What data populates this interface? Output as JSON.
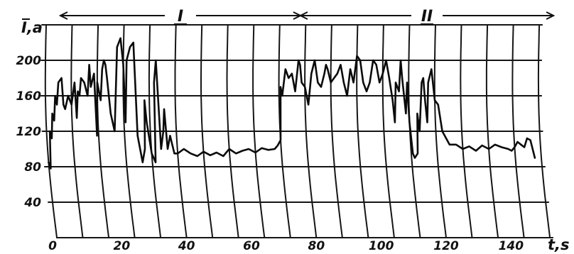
{
  "chart_data": {
    "type": "line",
    "xlabel": "t,s",
    "ylabel": "I,a",
    "xlim": [
      0,
      150
    ],
    "ylim": [
      0,
      240
    ],
    "x_ticks": [
      {
        "value": 0,
        "label": "0"
      },
      {
        "value": 20,
        "label": "20"
      },
      {
        "value": 40,
        "label": "40"
      },
      {
        "value": 60,
        "label": "60"
      },
      {
        "value": 80,
        "label": "80"
      },
      {
        "value": 100,
        "label": "100"
      },
      {
        "value": 120,
        "label": "120"
      },
      {
        "value": 140,
        "label": "140"
      }
    ],
    "y_ticks": [
      {
        "value": 40,
        "label": "40"
      },
      {
        "value": 80,
        "label": "80"
      },
      {
        "value": 120,
        "label": "120"
      },
      {
        "value": 160,
        "label": "160"
      },
      {
        "value": 200,
        "label": "200"
      }
    ],
    "grid": true,
    "phases": [
      {
        "label": "I",
        "x_start": 0,
        "x_end": 74
      },
      {
        "label": "II",
        "x_start": 74,
        "x_end": 152
      }
    ],
    "series": [
      {
        "x": [
          0,
          0.5,
          1,
          1.5,
          2,
          2.5,
          3,
          3.5,
          4,
          5,
          5.5,
          6,
          7,
          8,
          9,
          9.5,
          10,
          10.5,
          11,
          12,
          13,
          13.5,
          14,
          15,
          15.5,
          16,
          17,
          17.5,
          18,
          18.5,
          19,
          20,
          21,
          22,
          23,
          24,
          24.5,
          25,
          26,
          27,
          28,
          29,
          30,
          30.5,
          31,
          32,
          33,
          33.5,
          34,
          35,
          36,
          36.5,
          37,
          38,
          39,
          40,
          42,
          44,
          46,
          48,
          50,
          52,
          54,
          56,
          58,
          60,
          62,
          64,
          66,
          68,
          70,
          71,
          72,
          72.5,
          73,
          74,
          75,
          76,
          77,
          78,
          78.5,
          79,
          80,
          81,
          82,
          83,
          84,
          85,
          86,
          86.5,
          87,
          88,
          89,
          90,
          91,
          92,
          93,
          94,
          95,
          96,
          97,
          98,
          99,
          100,
          101,
          102,
          103,
          104,
          105,
          106,
          107,
          107.5,
          108,
          109,
          109.5,
          110,
          111,
          111.5,
          112,
          112.5,
          113,
          114,
          114.5,
          115,
          116,
          116.5,
          117,
          117.5,
          118,
          119,
          120,
          121,
          122,
          124,
          126,
          128,
          130,
          132,
          134,
          136,
          138,
          140,
          142,
          143,
          144,
          145,
          146,
          147,
          148,
          149,
          150
        ],
        "y": [
          85,
          78,
          120,
          112,
          140,
          132,
          160,
          150,
          175,
          180,
          150,
          145,
          160,
          150,
          175,
          135,
          165,
          160,
          180,
          175,
          160,
          195,
          170,
          185,
          115,
          175,
          155,
          190,
          200,
          195,
          180,
          140,
          120,
          215,
          225,
          195,
          130,
          200,
          215,
          220,
          115,
          85,
          100,
          155,
          130,
          95,
          85,
          175,
          200,
          100,
          120,
          145,
          100,
          115,
          95,
          95,
          100,
          95,
          92,
          97,
          93,
          96,
          92,
          100,
          95,
          98,
          100,
          96,
          101,
          99,
          100,
          104,
          110,
          170,
          160,
          190,
          180,
          185,
          165,
          200,
          195,
          175,
          170,
          150,
          185,
          200,
          175,
          170,
          185,
          195,
          190,
          175,
          180,
          185,
          195,
          175,
          160,
          190,
          175,
          205,
          200,
          175,
          165,
          175,
          200,
          195,
          175,
          185,
          200,
          180,
          155,
          130,
          175,
          165,
          200,
          180,
          140,
          175,
          130,
          95,
          90,
          95,
          140,
          120,
          175,
          180,
          155,
          130,
          175,
          190,
          155,
          150,
          120,
          105,
          105,
          100,
          103,
          98,
          104,
          100,
          105,
          102,
          100,
          98,
          102,
          108,
          105,
          102,
          112,
          110,
          90
        ]
      }
    ]
  }
}
